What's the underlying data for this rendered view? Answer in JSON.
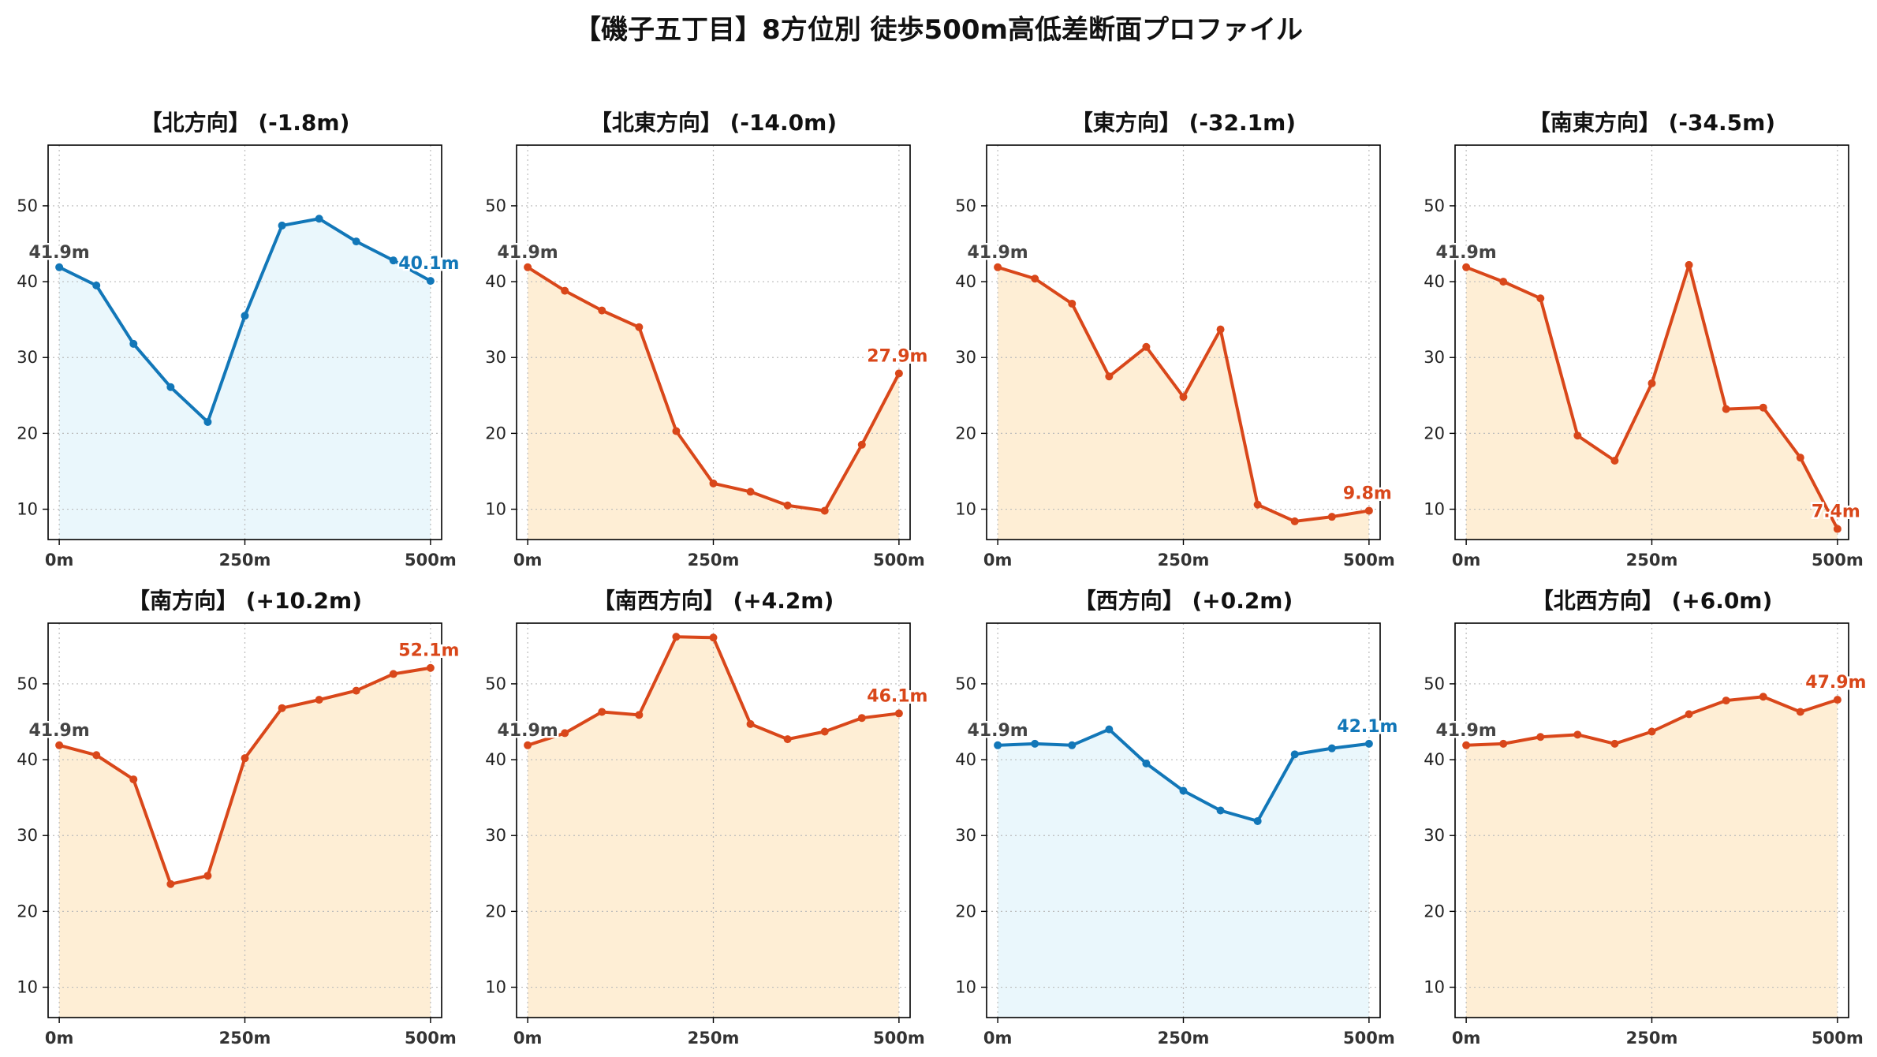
{
  "title": "【磯子五丁目】8方位別 徒歩500m高低差断面プロファイル",
  "colors": {
    "up": "#d9471a",
    "up_fill": "#feeed5",
    "down": "#1277b8",
    "down_fill": "#eaf7fc",
    "start_label": "#444444",
    "grid": "#bbbbbb"
  },
  "chart_data": [
    {
      "type": "line",
      "title": "【北方向】 (-1.8m)",
      "trend": "down",
      "x": [
        0,
        50,
        100,
        150,
        200,
        250,
        300,
        350,
        400,
        450,
        500
      ],
      "y": [
        41.9,
        39.5,
        31.8,
        26.1,
        21.5,
        35.5,
        47.4,
        48.3,
        45.3,
        42.8,
        40.1
      ],
      "start_label": "41.9m",
      "end_label": "40.1m",
      "xticks": [
        "0m",
        "250m",
        "500m"
      ],
      "yticks": [
        10,
        20,
        30,
        40,
        50
      ],
      "ylim": [
        6,
        58
      ],
      "xlim": [
        -15,
        515
      ],
      "grid": true
    },
    {
      "type": "line",
      "title": "【北東方向】 (-14.0m)",
      "trend": "up",
      "x": [
        0,
        50,
        100,
        150,
        200,
        250,
        300,
        350,
        400,
        450,
        500
      ],
      "y": [
        41.9,
        38.8,
        36.2,
        34.0,
        20.3,
        13.4,
        12.3,
        10.5,
        9.8,
        18.5,
        27.9
      ],
      "start_label": "41.9m",
      "end_label": "27.9m",
      "xticks": [
        "0m",
        "250m",
        "500m"
      ],
      "yticks": [
        10,
        20,
        30,
        40,
        50
      ],
      "ylim": [
        6,
        58
      ],
      "xlim": [
        -15,
        515
      ],
      "grid": true
    },
    {
      "type": "line",
      "title": "【東方向】 (-32.1m)",
      "trend": "up",
      "x": [
        0,
        50,
        100,
        150,
        200,
        250,
        300,
        350,
        400,
        450,
        500
      ],
      "y": [
        41.9,
        40.4,
        37.1,
        27.5,
        31.4,
        24.8,
        33.7,
        10.6,
        8.4,
        9.0,
        9.8
      ],
      "start_label": "41.9m",
      "end_label": "9.8m",
      "xticks": [
        "0m",
        "250m",
        "500m"
      ],
      "yticks": [
        10,
        20,
        30,
        40,
        50
      ],
      "ylim": [
        6,
        58
      ],
      "xlim": [
        -15,
        515
      ],
      "grid": true
    },
    {
      "type": "line",
      "title": "【南東方向】 (-34.5m)",
      "trend": "up",
      "x": [
        0,
        50,
        100,
        150,
        200,
        250,
        300,
        350,
        400,
        450,
        500
      ],
      "y": [
        41.9,
        40.0,
        37.8,
        19.7,
        16.4,
        26.6,
        42.2,
        23.2,
        23.4,
        16.8,
        7.4
      ],
      "start_label": "41.9m",
      "end_label": "7.4m",
      "xticks": [
        "0m",
        "250m",
        "500m"
      ],
      "yticks": [
        10,
        20,
        30,
        40,
        50
      ],
      "ylim": [
        6,
        58
      ],
      "xlim": [
        -15,
        515
      ],
      "grid": true
    },
    {
      "type": "line",
      "title": "【南方向】 (+10.2m)",
      "trend": "up",
      "x": [
        0,
        50,
        100,
        150,
        200,
        250,
        300,
        350,
        400,
        450,
        500
      ],
      "y": [
        41.9,
        40.6,
        37.4,
        23.6,
        24.7,
        40.2,
        46.8,
        47.9,
        49.1,
        51.3,
        52.1
      ],
      "start_label": "41.9m",
      "end_label": "52.1m",
      "xticks": [
        "0m",
        "250m",
        "500m"
      ],
      "yticks": [
        10,
        20,
        30,
        40,
        50
      ],
      "ylim": [
        6,
        58
      ],
      "xlim": [
        -15,
        515
      ],
      "grid": true
    },
    {
      "type": "line",
      "title": "【南西方向】 (+4.2m)",
      "trend": "up",
      "x": [
        0,
        50,
        100,
        150,
        200,
        250,
        300,
        350,
        400,
        450,
        500
      ],
      "y": [
        41.9,
        43.5,
        46.3,
        45.9,
        56.2,
        56.1,
        44.7,
        42.7,
        43.7,
        45.5,
        46.1
      ],
      "start_label": "41.9m",
      "end_label": "46.1m",
      "xticks": [
        "0m",
        "250m",
        "500m"
      ],
      "yticks": [
        10,
        20,
        30,
        40,
        50
      ],
      "ylim": [
        6,
        58
      ],
      "xlim": [
        -15,
        515
      ],
      "grid": true
    },
    {
      "type": "line",
      "title": "【西方向】 (+0.2m)",
      "trend": "down",
      "x": [
        0,
        50,
        100,
        150,
        200,
        250,
        300,
        350,
        400,
        450,
        500
      ],
      "y": [
        41.9,
        42.1,
        41.9,
        44.0,
        39.5,
        35.9,
        33.3,
        31.9,
        40.7,
        41.5,
        42.1
      ],
      "start_label": "41.9m",
      "end_label": "42.1m",
      "xticks": [
        "0m",
        "250m",
        "500m"
      ],
      "yticks": [
        10,
        20,
        30,
        40,
        50
      ],
      "ylim": [
        6,
        58
      ],
      "xlim": [
        -15,
        515
      ],
      "grid": true
    },
    {
      "type": "line",
      "title": "【北西方向】 (+6.0m)",
      "trend": "up",
      "x": [
        0,
        50,
        100,
        150,
        200,
        250,
        300,
        350,
        400,
        450,
        500
      ],
      "y": [
        41.9,
        42.1,
        43.0,
        43.3,
        42.1,
        43.7,
        46.0,
        47.8,
        48.3,
        46.3,
        47.9
      ],
      "start_label": "41.9m",
      "end_label": "47.9m",
      "xticks": [
        "0m",
        "250m",
        "500m"
      ],
      "yticks": [
        10,
        20,
        30,
        40,
        50
      ],
      "ylim": [
        6,
        58
      ],
      "xlim": [
        -15,
        515
      ],
      "grid": true
    }
  ]
}
